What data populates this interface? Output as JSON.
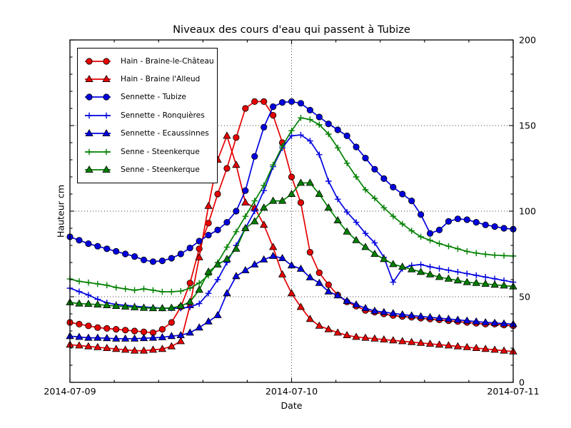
{
  "figure": {
    "title": "Niveaux des cours d'eau qui passent à Tubize",
    "xlabel": "Date",
    "ylabel": "Hauteur cm"
  },
  "chart_data": {
    "type": "line",
    "title": "Niveaux des cours d'eau qui passent à Tubize",
    "xlabel": "Date",
    "ylabel": "Hauteur cm",
    "x_unit": "hours since 2014-07-09 00:00 (hourly samples)",
    "x_range_hours": [
      0,
      48
    ],
    "x_tick_hours": [
      0,
      24,
      48
    ],
    "x_tick_labels": [
      "2014-07-09",
      "2014-07-10",
      "2014-07-11"
    ],
    "x_minor_tick_interval_hours": 4.8,
    "ylim": [
      0,
      200
    ],
    "y_ticks": [
      0,
      50,
      100,
      150,
      200
    ],
    "y_minor_tick_interval": 10,
    "grid": {
      "horizontal_values": [
        50,
        100,
        150
      ],
      "vertical_hours": [
        24
      ],
      "style": "dotted"
    },
    "legend_position": "upper-left",
    "axis_color": "#000000",
    "series": [
      {
        "name": "hain-braine-le-chateau",
        "label": "Hain - Braine-le-Château",
        "color": "#e60000",
        "marker": "circle",
        "values": [
          35,
          34,
          33,
          32,
          31.5,
          31,
          30.5,
          30,
          29.5,
          29,
          31,
          35,
          44,
          58,
          78,
          93,
          110,
          125,
          143,
          160,
          164,
          164,
          156,
          140,
          120,
          105,
          76,
          64,
          57,
          51,
          47,
          44.5,
          42,
          41,
          40,
          39,
          38.5,
          38,
          37.5,
          37,
          36.5,
          36,
          35.5,
          35,
          34.5,
          34,
          34,
          33.5,
          33
        ]
      },
      {
        "name": "hain-braine-l-alleud",
        "label": "Hain - Braine l'Alleud",
        "color": "#e60000",
        "marker": "triangle",
        "values": [
          22,
          21.5,
          21,
          20.5,
          20,
          19.5,
          19,
          18.5,
          18.5,
          19,
          19.5,
          21,
          24,
          45,
          73,
          103,
          130,
          144,
          127,
          105,
          102,
          92,
          79,
          63,
          52,
          44,
          37,
          33,
          31,
          29,
          27.5,
          26.5,
          26,
          25.5,
          25,
          24.5,
          24,
          23.5,
          23,
          22.5,
          22,
          21.5,
          21,
          20.5,
          20,
          19.5,
          19,
          18.5,
          18
        ]
      },
      {
        "name": "sennette-tubize",
        "label": "Sennette - Tubize",
        "color": "#0000e0",
        "marker": "circle",
        "values": [
          85,
          83,
          81,
          79.5,
          78,
          76.5,
          75,
          73.5,
          71.5,
          70.5,
          71,
          72.5,
          75,
          78.5,
          82.5,
          86,
          89,
          93.5,
          100,
          112,
          132,
          149,
          161,
          163.5,
          164,
          163,
          159,
          155,
          151,
          147.5,
          144,
          137.5,
          131,
          124.5,
          119,
          114,
          110,
          106,
          98,
          87,
          89,
          94,
          95.5,
          95,
          93.5,
          92,
          91,
          90,
          89.5
        ]
      },
      {
        "name": "sennette-ronquieres",
        "label": "Sennette - Ronquières",
        "color": "#0000e0",
        "marker": "plus",
        "values": [
          55,
          53,
          51,
          48.5,
          46.5,
          45.5,
          45,
          44.5,
          44,
          43.7,
          43.3,
          43.3,
          43.3,
          44,
          46,
          52,
          60,
          70,
          80,
          90,
          100,
          112,
          126,
          137,
          144,
          144.5,
          141,
          133,
          117.5,
          107,
          99.5,
          93.5,
          87,
          81.5,
          73,
          58.5,
          66.5,
          68.3,
          68.8,
          67.5,
          66.5,
          65.5,
          64.5,
          63.5,
          62.5,
          61.5,
          60.5,
          59.5,
          58.5
        ]
      },
      {
        "name": "sennette-ecaussinnes",
        "label": "Sennette - Ecaussinnes",
        "color": "#0000e0",
        "marker": "triangle",
        "values": [
          27,
          26.5,
          26,
          26,
          25.8,
          25.5,
          25.5,
          25.5,
          25.8,
          26,
          26.3,
          27,
          27.5,
          29,
          32,
          35.5,
          39.2,
          52,
          62,
          65.4,
          68.8,
          71.7,
          73.8,
          72.5,
          68.3,
          66.3,
          61.3,
          58,
          53,
          50.8,
          47.5,
          45.4,
          43.3,
          41.7,
          41,
          40.3,
          39.6,
          39,
          38.5,
          38,
          37.5,
          37,
          36.5,
          36,
          35.5,
          35,
          34.7,
          34.3,
          34
        ]
      },
      {
        "name": "senne-steenkerque-1",
        "label": "Senne - Steenkerque",
        "color": "#008000",
        "marker": "plus",
        "values": [
          60.4,
          59,
          58.3,
          57.5,
          56.7,
          55.4,
          54.6,
          53.8,
          54.6,
          53.8,
          52.9,
          52.9,
          53.3,
          55,
          58,
          62.5,
          70,
          79,
          88,
          97,
          106,
          115,
          127,
          138,
          147,
          154.5,
          153.5,
          150.5,
          145,
          137,
          128,
          120,
          112.5,
          107.5,
          102,
          97,
          92.5,
          88.5,
          85,
          83,
          81,
          79.5,
          78,
          76.5,
          75.5,
          74.8,
          74.3,
          74,
          73.8
        ]
      },
      {
        "name": "senne-steenkerque-2",
        "label": "Senne - Steenkerque",
        "color": "#008000",
        "marker": "triangle",
        "values": [
          46.7,
          46,
          45.8,
          45.4,
          45,
          44.6,
          44.2,
          43.8,
          43.5,
          43.3,
          43.3,
          43.5,
          44.6,
          47,
          54,
          64.6,
          68.8,
          72,
          78,
          90,
          94,
          102,
          106,
          106,
          110,
          116.5,
          116.5,
          110,
          102,
          94.6,
          88,
          83,
          79,
          75,
          72,
          69,
          67.5,
          66,
          64.5,
          63,
          61.5,
          60.5,
          59.5,
          58.5,
          58,
          57.5,
          57,
          56.5,
          56
        ]
      }
    ]
  }
}
